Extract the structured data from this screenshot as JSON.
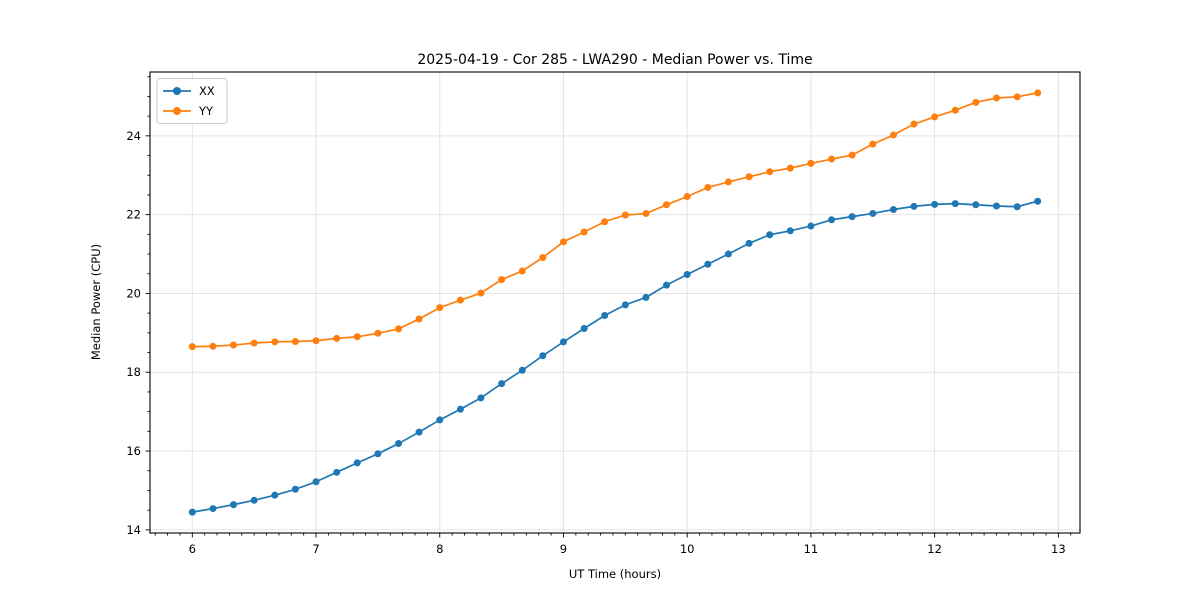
{
  "chart_data": {
    "type": "line",
    "title": "2025-04-19 - Cor 285 - LWA290 - Median Power vs. Time",
    "xlabel": "UT Time (hours)",
    "ylabel": "Median Power (CPU)",
    "xlim": [
      5.658,
      13.175
    ],
    "ylim": [
      13.92,
      25.62
    ],
    "x_ticks": [
      6,
      7,
      8,
      9,
      10,
      11,
      12,
      13
    ],
    "y_ticks": [
      14,
      16,
      18,
      20,
      22,
      24
    ],
    "x_minor_step": 0.1,
    "y_minor_step": 0.5,
    "grid": true,
    "grid_color": "#e4e4e4",
    "legend_position": "upper left",
    "background_color": "#ffffff",
    "x": [
      6.0,
      6.167,
      6.333,
      6.5,
      6.667,
      6.833,
      7.0,
      7.167,
      7.333,
      7.5,
      7.667,
      7.833,
      8.0,
      8.167,
      8.333,
      8.5,
      8.667,
      8.833,
      9.0,
      9.167,
      9.333,
      9.5,
      9.667,
      9.833,
      10.0,
      10.167,
      10.333,
      10.5,
      10.667,
      10.833,
      11.0,
      11.167,
      11.333,
      11.5,
      11.667,
      11.833,
      12.0,
      12.167,
      12.333,
      12.5,
      12.667,
      12.833
    ],
    "series": [
      {
        "name": "XX",
        "color": "#1f77b4",
        "values": [
          14.45,
          14.54,
          14.64,
          14.75,
          14.88,
          15.03,
          15.22,
          15.46,
          15.7,
          15.93,
          16.19,
          16.48,
          16.79,
          17.06,
          17.35,
          17.71,
          18.05,
          18.42,
          18.77,
          19.11,
          19.44,
          19.71,
          19.9,
          20.21,
          20.48,
          20.74,
          21.0,
          21.27,
          21.49,
          21.59,
          21.71,
          21.87,
          21.95,
          22.03,
          22.13,
          22.21,
          22.26,
          22.28,
          22.25,
          22.22,
          22.2,
          22.34
        ]
      },
      {
        "name": "YY",
        "color": "#ff7f0e",
        "values": [
          18.65,
          18.66,
          18.69,
          18.74,
          18.77,
          18.78,
          18.8,
          18.86,
          18.9,
          18.99,
          19.1,
          19.35,
          19.64,
          19.83,
          20.01,
          20.35,
          20.57,
          20.91,
          21.31,
          21.56,
          21.82,
          21.99,
          22.03,
          22.25,
          22.46,
          22.69,
          22.83,
          22.96,
          23.09,
          23.18,
          23.3,
          23.41,
          23.51,
          23.79,
          24.02,
          24.3,
          24.48,
          24.65,
          24.85,
          24.96,
          24.99,
          25.09
        ]
      }
    ]
  }
}
